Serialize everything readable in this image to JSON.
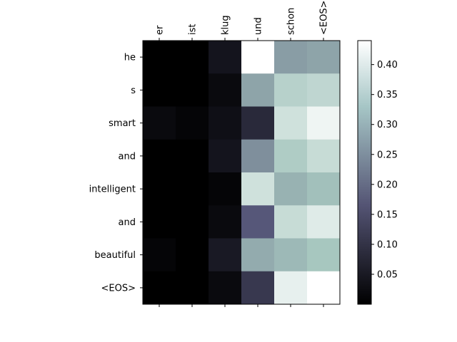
{
  "chart_data": {
    "type": "heatmap",
    "colormap": "bone",
    "x_tick_labels": [
      "er",
      "ist",
      "klug",
      "und",
      "schon",
      "<EOS>"
    ],
    "y_tick_labels": [
      "he",
      "s",
      "smart",
      "and",
      "intelligent",
      "and",
      "beautiful",
      "<EOS>"
    ],
    "values": [
      [
        0.0,
        0.0,
        0.04,
        0.44,
        0.27,
        0.28
      ],
      [
        0.0,
        0.0,
        0.02,
        0.28,
        0.35,
        0.36
      ],
      [
        0.02,
        0.01,
        0.03,
        0.08,
        0.38,
        0.42
      ],
      [
        0.0,
        0.0,
        0.04,
        0.25,
        0.34,
        0.37
      ],
      [
        0.0,
        0.0,
        0.01,
        0.38,
        0.3,
        0.32
      ],
      [
        0.0,
        0.0,
        0.02,
        0.17,
        0.37,
        0.4
      ],
      [
        0.01,
        0.0,
        0.05,
        0.29,
        0.31,
        0.33
      ],
      [
        0.0,
        0.0,
        0.02,
        0.11,
        0.41,
        0.44
      ]
    ],
    "colorbar": {
      "range": [
        0.0,
        0.44
      ],
      "ticks": [
        0.05,
        0.1,
        0.15,
        0.2,
        0.25,
        0.3,
        0.35,
        0.4
      ],
      "tick_labels": [
        "0.05",
        "0.10",
        "0.15",
        "0.20",
        "0.25",
        "0.30",
        "0.35",
        "0.40"
      ]
    }
  }
}
